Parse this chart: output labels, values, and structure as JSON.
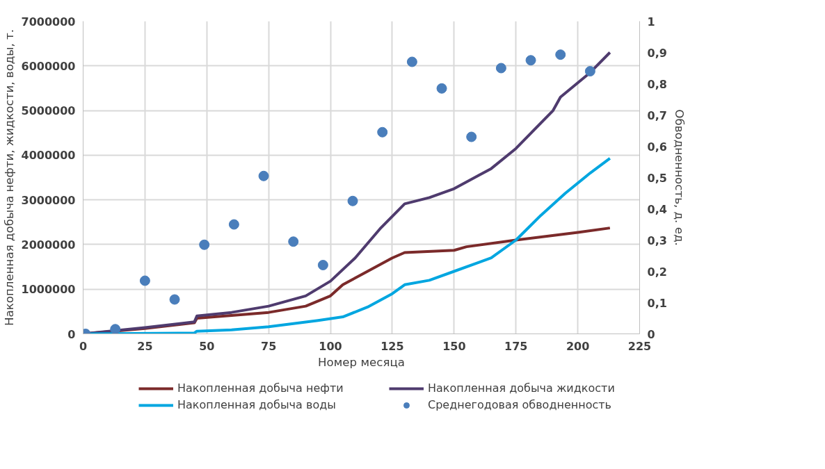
{
  "chart_data": {
    "type": "line",
    "xlabel": "Номер месяца",
    "ylabel": "Накопленная добыча нефти, жидкости, воды, т.",
    "y2label": "Обводненность, д. ед.",
    "xlim": [
      0,
      225
    ],
    "xticks": [
      0,
      25,
      50,
      75,
      100,
      125,
      150,
      175,
      200,
      225
    ],
    "ylim": [
      0,
      7000000
    ],
    "yticks": [
      0,
      1000000,
      2000000,
      3000000,
      4000000,
      5000000,
      6000000,
      7000000
    ],
    "y2lim": [
      0,
      1
    ],
    "y2ticks": [
      {
        "value": 0,
        "label": "0"
      },
      {
        "value": 0.1,
        "label": "0,1"
      },
      {
        "value": 0.2,
        "label": "0,2"
      },
      {
        "value": 0.3,
        "label": "0,3"
      },
      {
        "value": 0.4,
        "label": "0,4"
      },
      {
        "value": 0.5,
        "label": "0,5"
      },
      {
        "value": 0.6,
        "label": "0,6"
      },
      {
        "value": 0.7,
        "label": "0,7"
      },
      {
        "value": 0.8,
        "label": "0,8"
      },
      {
        "value": 0.9,
        "label": "0,9"
      },
      {
        "value": 1,
        "label": "1"
      }
    ],
    "grid": true,
    "legend": "bottom",
    "line_style": "solid",
    "series": [
      {
        "name": "Накопленная добыча нефти",
        "color": "#7b2a2a",
        "x": [
          0,
          25,
          45,
          46,
          75,
          90,
          100,
          105,
          115,
          125,
          130,
          150,
          155,
          175,
          200,
          213
        ],
        "values": [
          0,
          120000,
          250000,
          350000,
          480000,
          620000,
          850000,
          1100000,
          1400000,
          1700000,
          1820000,
          1870000,
          1950000,
          2100000,
          2270000,
          2370000
        ]
      },
      {
        "name": "Накопленная добыча жидкости",
        "color": "#4f3b6e",
        "x": [
          0,
          25,
          45,
          46,
          60,
          75,
          90,
          100,
          110,
          120,
          130,
          140,
          150,
          160,
          165,
          175,
          190,
          193,
          205,
          213
        ],
        "values": [
          0,
          140000,
          270000,
          400000,
          480000,
          620000,
          850000,
          1180000,
          1700000,
          2350000,
          2910000,
          3050000,
          3250000,
          3550000,
          3700000,
          4150000,
          5000000,
          5300000,
          5850000,
          6300000
        ]
      },
      {
        "name": "Накопленная добыча воды",
        "color": "#00a6e0",
        "x": [
          0,
          45,
          46,
          60,
          75,
          95,
          105,
          115,
          125,
          130,
          140,
          150,
          160,
          165,
          175,
          185,
          195,
          205,
          213
        ],
        "values": [
          0,
          20000,
          60000,
          90000,
          160000,
          300000,
          380000,
          600000,
          900000,
          1100000,
          1200000,
          1400000,
          1600000,
          1700000,
          2100000,
          2650000,
          3150000,
          3600000,
          3930000
        ]
      },
      {
        "name": "Среднегодовая обводненность",
        "type": "scatter",
        "marker": "circle",
        "axis": "y2",
        "color": "#4a7ebb",
        "x": [
          1,
          13,
          25,
          37,
          49,
          61,
          73,
          85,
          97,
          109,
          121,
          133,
          145,
          157,
          169,
          181,
          193,
          205
        ],
        "values": [
          0,
          0.015,
          0.17,
          0.11,
          0.285,
          0.35,
          0.505,
          0.295,
          0.22,
          0.425,
          0.645,
          0.87,
          0.785,
          0.63,
          0.85,
          0.875,
          0.893,
          0.84
        ]
      }
    ]
  }
}
